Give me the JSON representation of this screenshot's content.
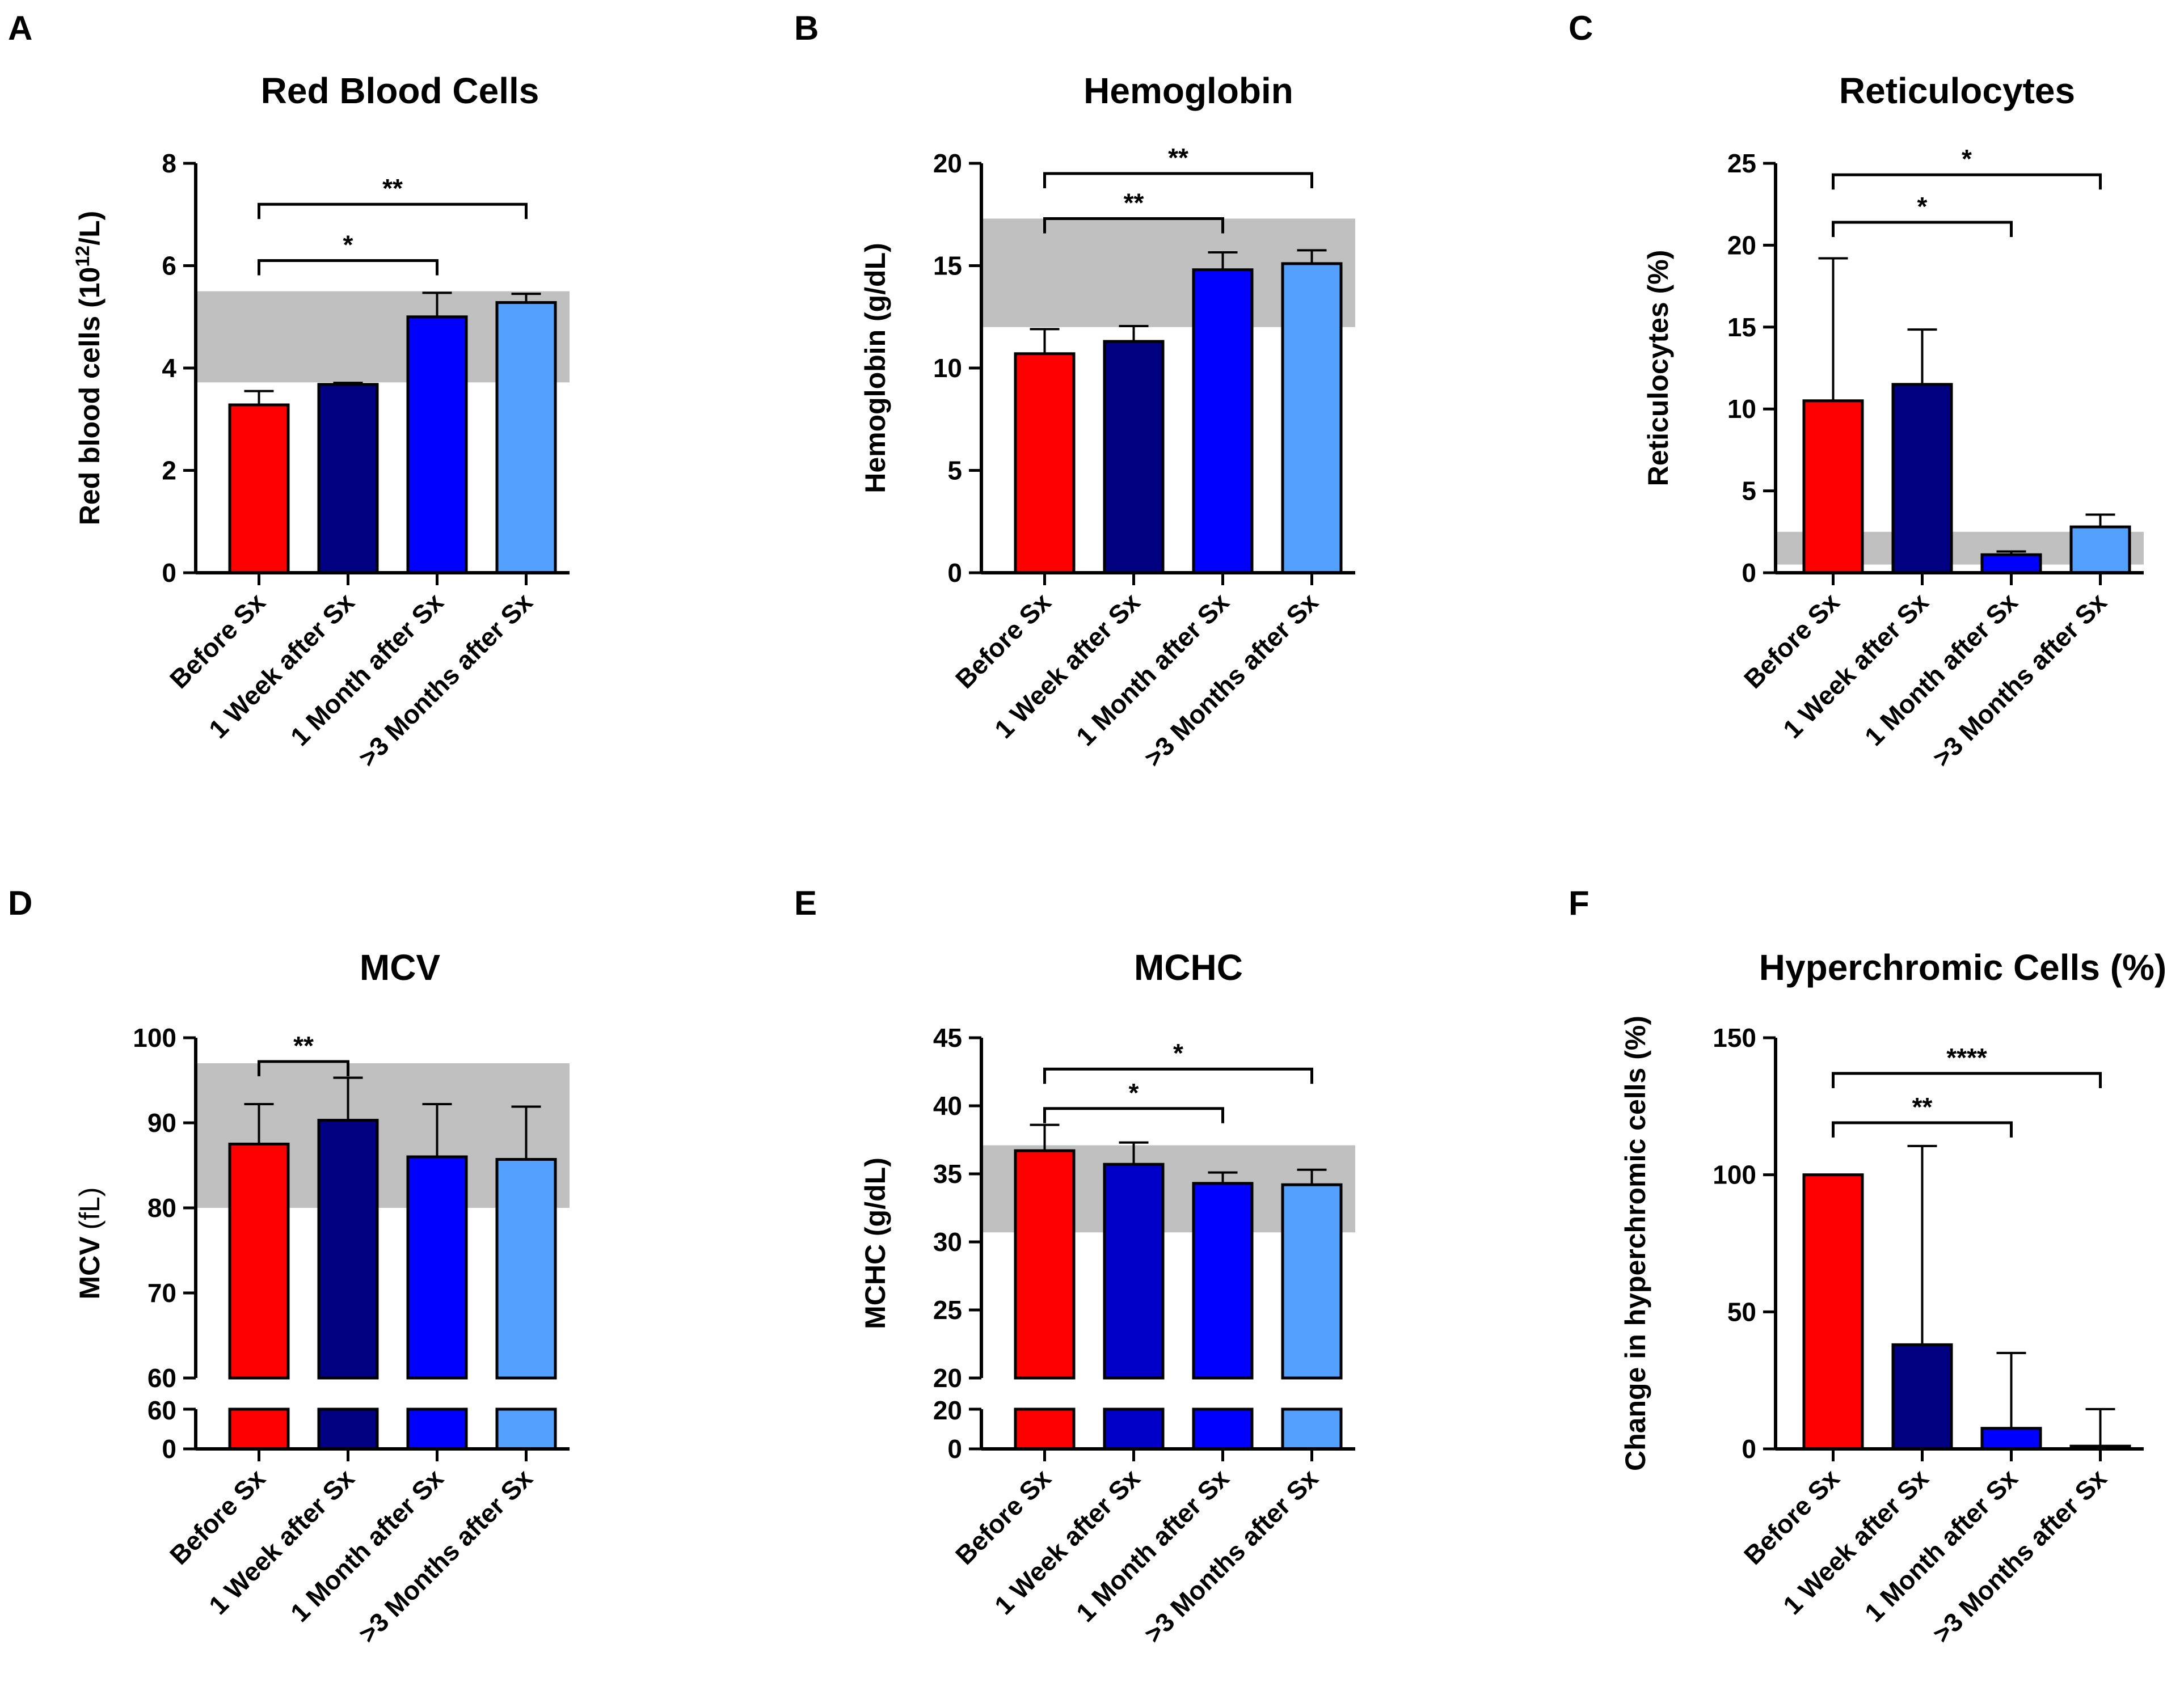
{
  "colors": {
    "before": "#ff0000",
    "week1": "#000080",
    "week1_mchc": "#0000c8",
    "month1": "#0000ff",
    "month3": "#54a0ff",
    "reference_band": "#c0c0c0",
    "axis": "#000000"
  },
  "categories": [
    "Before Sx",
    "1 Week after Sx",
    "1 Month after Sx",
    ">3 Months after Sx"
  ],
  "chart_data": [
    {
      "id": "A",
      "panel_label": "A",
      "type": "bar",
      "title": "Red Blood Cells",
      "ylabel_main": "Red blood cells (10",
      "ylabel_sup": "12",
      "ylabel_tail": "/L)",
      "ylim": [
        0,
        8
      ],
      "yticks": [
        "0",
        "2",
        "4",
        "6",
        "8"
      ],
      "ytick_values": [
        0,
        2,
        4,
        6,
        8
      ],
      "values": [
        3.28,
        3.68,
        5.0,
        5.28
      ],
      "errors": [
        0.27,
        0.03,
        0.47,
        0.17
      ],
      "reference_range": [
        3.72,
        5.5
      ],
      "significance": [
        {
          "from": 0,
          "to": 2,
          "label": "*",
          "y": 6.1
        },
        {
          "from": 0,
          "to": 3,
          "label": "**",
          "y": 7.2
        }
      ]
    },
    {
      "id": "B",
      "panel_label": "B",
      "type": "bar",
      "title": "Hemoglobin",
      "ylabel_main": "Hemoglobin (g/dL)",
      "ylim": [
        0,
        20
      ],
      "yticks": [
        "0",
        "5",
        "10",
        "15",
        "20"
      ],
      "ytick_values": [
        0,
        5,
        10,
        15,
        20
      ],
      "values": [
        10.7,
        11.3,
        14.8,
        15.1
      ],
      "errors": [
        1.2,
        0.75,
        0.85,
        0.65
      ],
      "reference_range": [
        12,
        17.3
      ],
      "significance": [
        {
          "from": 0,
          "to": 2,
          "label": "**",
          "y": 17.3
        },
        {
          "from": 0,
          "to": 3,
          "label": "**",
          "y": 19.5
        }
      ]
    },
    {
      "id": "C",
      "panel_label": "C",
      "type": "bar",
      "title": "Reticulocytes",
      "ylabel_main": "Reticulocytes (%)",
      "ylim": [
        0,
        25
      ],
      "yticks": [
        "0",
        "5",
        "10",
        "15",
        "20",
        "25"
      ],
      "ytick_values": [
        0,
        5,
        10,
        15,
        20,
        25
      ],
      "values": [
        10.5,
        11.5,
        1.1,
        2.8
      ],
      "errors": [
        8.7,
        3.35,
        0.2,
        0.75
      ],
      "reference_range": [
        0.5,
        2.5
      ],
      "significance": [
        {
          "from": 0,
          "to": 2,
          "label": "*",
          "y": 21.4
        },
        {
          "from": 0,
          "to": 3,
          "label": "*",
          "y": 24.3
        }
      ]
    },
    {
      "id": "D",
      "panel_label": "D",
      "type": "bar",
      "title": "MCV",
      "ylabel_main": "MCV",
      "ylabel_unit": "(fL)",
      "broken_axis": true,
      "ylim": [
        60,
        100
      ],
      "yticks": [
        "60",
        "70",
        "80",
        "90",
        "100"
      ],
      "ytick_values": [
        60,
        70,
        80,
        90,
        100
      ],
      "lower_ticks": [
        "0",
        "60"
      ],
      "values": [
        87.5,
        90.3,
        86.0,
        85.7
      ],
      "errors": [
        4.7,
        5.0,
        6.2,
        6.2
      ],
      "reference_range": [
        80,
        97
      ],
      "significance": [
        {
          "from": 0,
          "to": 1,
          "label": "**",
          "y": 97.2
        }
      ]
    },
    {
      "id": "E",
      "panel_label": "E",
      "type": "bar",
      "title": "MCHC",
      "ylabel_main": "MCHC (g/dL)",
      "broken_axis": true,
      "ylim": [
        20,
        45
      ],
      "yticks": [
        "20",
        "25",
        "30",
        "35",
        "40",
        "45"
      ],
      "ytick_values": [
        20,
        25,
        30,
        35,
        40,
        45
      ],
      "lower_ticks": [
        "0",
        "20"
      ],
      "values": [
        36.7,
        35.7,
        34.3,
        34.2
      ],
      "errors": [
        1.9,
        1.6,
        0.8,
        1.1
      ],
      "reference_range": [
        30.7,
        37.1
      ],
      "significance": [
        {
          "from": 0,
          "to": 2,
          "label": "*",
          "y": 39.8
        },
        {
          "from": 0,
          "to": 3,
          "label": "*",
          "y": 42.7
        }
      ]
    },
    {
      "id": "F",
      "panel_label": "F",
      "type": "bar",
      "title": "Hyperchromic Cells (%)",
      "ylabel_main": "Change in hyperchromic cells (%)",
      "ylim": [
        0,
        150
      ],
      "yticks": [
        "0",
        "50",
        "100",
        "150"
      ],
      "ytick_values": [
        0,
        50,
        100,
        150
      ],
      "values": [
        100,
        38,
        7.5,
        1
      ],
      "errors": [
        0,
        72.5,
        27.5,
        13.5
      ],
      "significance": [
        {
          "from": 0,
          "to": 2,
          "label": "**",
          "y": 119
        },
        {
          "from": 0,
          "to": 3,
          "label": "****",
          "y": 137
        }
      ]
    }
  ]
}
